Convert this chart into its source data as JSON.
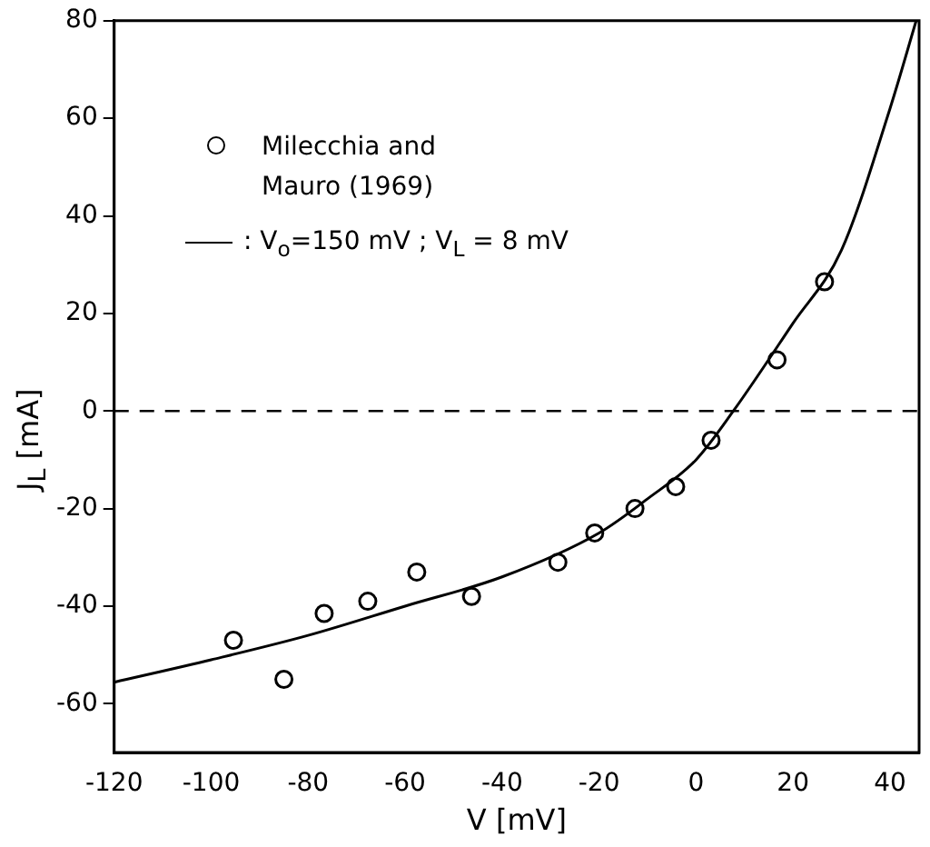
{
  "chart_data": {
    "type": "scatter",
    "xlabel": "V [mV]",
    "ylabel": "J$_{L}$ [mA]",
    "xlim": [
      -120,
      46
    ],
    "xticks": [
      -120,
      -100,
      -80,
      -60,
      -40,
      -20,
      0,
      20,
      40
    ],
    "ylim": [
      -70,
      80
    ],
    "yticks": [
      -60,
      -40,
      -20,
      0,
      20,
      40,
      60,
      80
    ],
    "grid": false,
    "legend": "top left",
    "ref_lines": [
      {
        "axis": "y",
        "value": 0,
        "line_style": "dashed",
        "color": "#000000"
      }
    ],
    "series": [
      {
        "name": "Milecchia and Mauro (1969)",
        "marker": "circle",
        "color": "#000000",
        "x": [
          -95.4,
          -85,
          -76.7,
          -67.7,
          -57.6,
          -46.3,
          -28.5,
          -20.9,
          -12.6,
          -4.2,
          3.1,
          16.7,
          26.5
        ],
        "values": [
          -47,
          -55,
          -41.5,
          -39,
          -33,
          -38,
          -31,
          -25,
          -20,
          -15.5,
          -6,
          10.5,
          26.5
        ]
      },
      {
        "name": ": V$_{o}$=150 mV ; V$_{L}$ = 8 mV",
        "type": "line",
        "marker": "none",
        "line_style": "solid",
        "color": "#000000",
        "x": [
          -120,
          -100,
          -80,
          -60,
          -40,
          -20,
          -10,
          0,
          7.7,
          20,
          30,
          40,
          45.4
        ],
        "values": [
          -55.6,
          -51,
          -46,
          -40,
          -34,
          -25,
          -18,
          -10,
          0,
          18,
          33,
          62,
          80
        ]
      }
    ]
  }
}
